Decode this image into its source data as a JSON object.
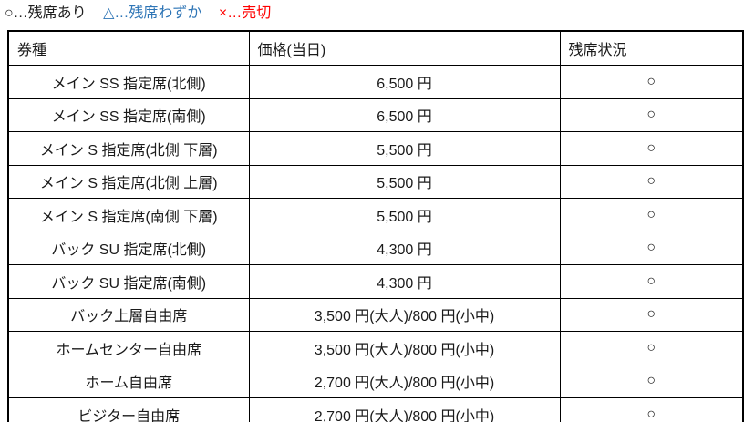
{
  "legend": {
    "items": [
      {
        "label": "○…残席あり",
        "meaning": "seats-available",
        "color": "#1f1f1f"
      },
      {
        "label": "△…残席わずか",
        "meaning": "few-seats-left",
        "color": "#2e75b6"
      },
      {
        "label": "×…売切",
        "meaning": "sold-out",
        "color": "#ff0000"
      }
    ]
  },
  "table": {
    "headers": [
      "券種",
      "価格(当日)",
      "残席状況"
    ],
    "rows": [
      {
        "type": "メイン SS 指定席(北側)",
        "price": "6,500 円",
        "status": "○"
      },
      {
        "type": "メイン SS 指定席(南側)",
        "price": "6,500 円",
        "status": "○"
      },
      {
        "type": "メイン S 指定席(北側 下層)",
        "price": "5,500 円",
        "status": "○"
      },
      {
        "type": "メイン S 指定席(北側 上層)",
        "price": "5,500 円",
        "status": "○"
      },
      {
        "type": "メイン S 指定席(南側 下層)",
        "price": "5,500 円",
        "status": "○"
      },
      {
        "type": "バック SU 指定席(北側)",
        "price": "4,300 円",
        "status": "○"
      },
      {
        "type": "バック SU 指定席(南側)",
        "price": "4,300 円",
        "status": "○"
      },
      {
        "type": "バック上層自由席",
        "price": "3,500 円(大人)/800 円(小中)",
        "status": "○"
      },
      {
        "type": "ホームセンター自由席",
        "price": "3,500 円(大人)/800 円(小中)",
        "status": "○"
      },
      {
        "type": "ホーム自由席",
        "price": "2,700 円(大人)/800 円(小中)",
        "status": "○"
      },
      {
        "type": "ビジター自由席",
        "price": "2,700 円(大人)/800 円(小中)",
        "status": "○"
      }
    ]
  }
}
